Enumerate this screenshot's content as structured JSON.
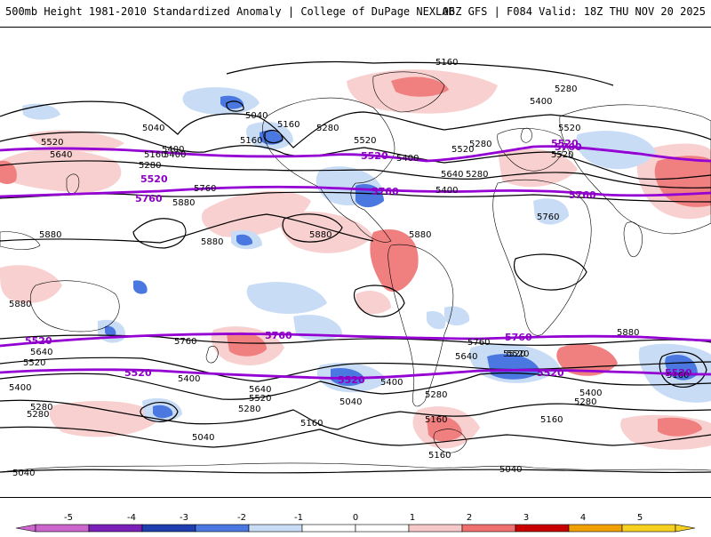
{
  "header": {
    "left_title": "500mb Height 1981-2010 Standardized Anomaly | College of DuPage NEXLAB",
    "right_title": "06Z GFS | F084 Valid: 18Z THU NOV 20 2025"
  },
  "contour_labels": {
    "heights": [
      "5160",
      "5280",
      "5400",
      "5040",
      "5160",
      "5280",
      "5520",
      "5640",
      "5160",
      "5280",
      "5400",
      "5520",
      "5400",
      "5520",
      "5640",
      "5040",
      "5160",
      "5280",
      "5400",
      "5520",
      "5760",
      "5880",
      "5880",
      "5880",
      "5880",
      "5880",
      "5760",
      "5520",
      "5280",
      "5400",
      "5880",
      "5760",
      "5640",
      "5520",
      "5400",
      "5280",
      "5040",
      "5160",
      "5040",
      "5400",
      "5280",
      "5160",
      "5640",
      "5520",
      "5280",
      "5520",
      "5400",
      "5280",
      "5160",
      "5040",
      "5160",
      "5880",
      "5760",
      "5640",
      "5520",
      "5400",
      "5280",
      "5160",
      "5040"
    ],
    "highlighted": [
      "5520",
      "5760",
      "5520",
      "5760",
      "5520",
      "5760",
      "5760",
      "5520",
      "5760",
      "5520",
      "5520",
      "5760",
      "5520",
      "5520"
    ]
  },
  "colorbar": {
    "labels": [
      "-5",
      "-4",
      "-3",
      "-2",
      "-1",
      "0",
      "1",
      "2",
      "3",
      "4",
      "5"
    ],
    "colors": [
      "#cc66cc",
      "#7a1fb8",
      "#1f3fb0",
      "#4a78e0",
      "#c8dcf6",
      "#ffffff",
      "#ffffff",
      "#f6c8c8",
      "#f07070",
      "#c80000",
      "#f0a000",
      "#f6d020"
    ]
  },
  "colors": {
    "height_contour": "#000000",
    "highlight_contour": "#9400d3",
    "pos_anom_light": "#f8d0d0",
    "pos_anom_strong": "#f08080",
    "neg_anom_light": "#c8dcf6",
    "neg_anom_strong": "#4a78e0"
  }
}
